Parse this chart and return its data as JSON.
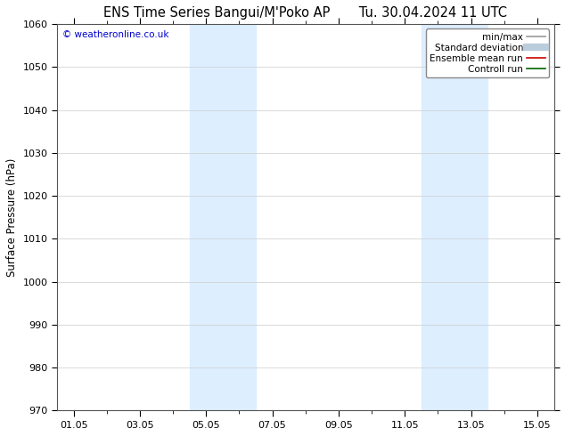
{
  "title_left": "ENS Time Series Bangui/M'Poko AP",
  "title_right": "Tu. 30.04.2024 11 UTC",
  "ylabel": "Surface Pressure (hPa)",
  "ylim": [
    970,
    1060
  ],
  "yticks": [
    970,
    980,
    990,
    1000,
    1010,
    1020,
    1030,
    1040,
    1050,
    1060
  ],
  "xtick_labels": [
    "01.05",
    "03.05",
    "05.05",
    "07.05",
    "09.05",
    "11.05",
    "13.05",
    "15.05"
  ],
  "xtick_positions": [
    0,
    2,
    4,
    6,
    8,
    10,
    12,
    14
  ],
  "xlim": [
    -0.5,
    14.5
  ],
  "shaded_bands": [
    {
      "xmin": 3.5,
      "xmax": 4.5
    },
    {
      "xmin": 4.5,
      "xmax": 5.5
    },
    {
      "xmin": 10.5,
      "xmax": 11.5
    },
    {
      "xmin": 11.5,
      "xmax": 12.5
    }
  ],
  "shade_color": "#ddeeff",
  "background_color": "#ffffff",
  "watermark": "© weatheronline.co.uk",
  "legend_items": [
    {
      "label": "min/max",
      "color": "#999999",
      "lw": 1.2,
      "style": "-"
    },
    {
      "label": "Standard deviation",
      "color": "#bbccdd",
      "lw": 6,
      "style": "-"
    },
    {
      "label": "Ensemble mean run",
      "color": "#cc0000",
      "lw": 1.2,
      "style": "-"
    },
    {
      "label": "Controll run",
      "color": "#006600",
      "lw": 1.2,
      "style": "-"
    }
  ],
  "grid_color": "#cccccc",
  "title_fontsize": 10.5,
  "axis_fontsize": 8.5,
  "tick_fontsize": 8,
  "legend_fontsize": 7.5
}
